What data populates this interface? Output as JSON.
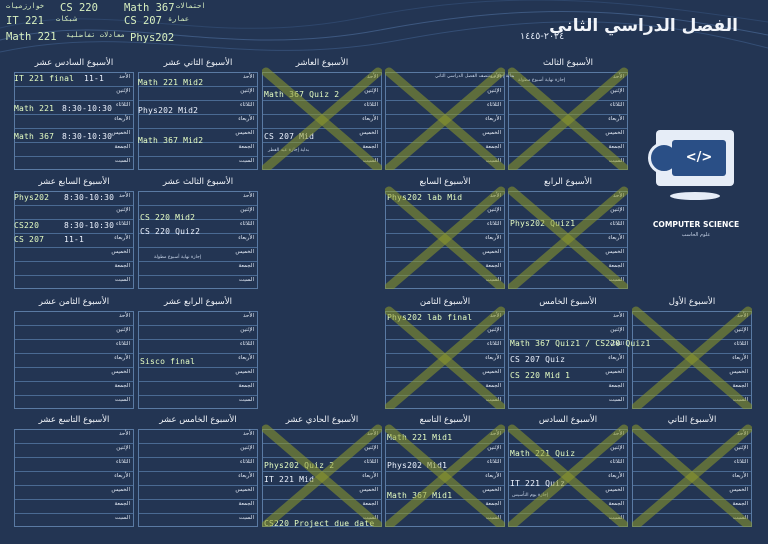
{
  "page_title": "الفصل الدراسي الثاني",
  "academic_year": "٢٠٢٤-١٤٤٥",
  "legend": [
    {
      "text": "CS 220",
      "sub": "خوارزميات"
    },
    {
      "text": "IT 221",
      "sub": "شبكات"
    },
    {
      "text": "Math 221",
      "sub": "معادلات تفاضلية"
    },
    {
      "text": "Math 367",
      "sub": "احتمالات"
    },
    {
      "text": "CS 207",
      "sub": "عمارة"
    },
    {
      "text": "Phys202",
      "sub": ""
    }
  ],
  "logo": {
    "text": "COMPUTER SCIENCE",
    "sub": "علوم الحاسب",
    "code_glyph": "</>",
    "icon": "code-icon"
  },
  "day_labels": [
    "الأحد",
    "الإثنين",
    "الثلاثاء",
    "الأربعاء",
    "الخميس",
    "الجمعة",
    "السبت"
  ],
  "weeks": [
    {
      "id": "w1",
      "title": "الأسبوع الأول",
      "crossed": true,
      "entries": []
    },
    {
      "id": "w2",
      "title": "الأسبوع الثاني",
      "crossed": true,
      "entries": []
    },
    {
      "id": "w3",
      "title": "الأسبوع الثالث",
      "crossed": true,
      "entries": [
        {
          "text": "إجازة نهاية أسبوع مطولة",
          "kind": "note"
        }
      ]
    },
    {
      "id": "w4",
      "title": "الأسبوع الرابع",
      "crossed": true,
      "entries": [
        {
          "text": "Phys202 Quiz1",
          "kind": "hand"
        }
      ]
    },
    {
      "id": "w5",
      "title": "الأسبوع الخامس",
      "crossed": false,
      "entries": [
        {
          "text": "Math 367 Quiz1 / CS220 Quiz1",
          "kind": "hand"
        },
        {
          "text": "CS 207 Quiz",
          "kind": "hand"
        },
        {
          "text": "CS 220 Mid 1",
          "kind": "hand"
        }
      ]
    },
    {
      "id": "w6",
      "title": "الأسبوع السادس",
      "crossed": true,
      "entries": [
        {
          "text": "Math 221 Quiz",
          "kind": "hand"
        },
        {
          "text": "IT 221 Quiz",
          "kind": "hand"
        },
        {
          "text": "إجازة يوم التأسيس",
          "kind": "note"
        }
      ]
    },
    {
      "id": "w7",
      "title": "الأسبوع السابع",
      "crossed": true,
      "entries": [
        {
          "text": "Phys202 lab Mid",
          "kind": "hand"
        }
      ]
    },
    {
      "id": "w8",
      "title": "الأسبوع الثامن",
      "crossed": true,
      "entries": [
        {
          "text": "Phys202 lab final",
          "kind": "hand"
        }
      ]
    },
    {
      "id": "w9",
      "title": "الأسبوع التاسع",
      "crossed": true,
      "entries": [
        {
          "text": "Math 221 Mid1",
          "kind": "hand"
        },
        {
          "text": "Phys202 Mid1",
          "kind": "hand"
        },
        {
          "text": "Math 367 Mid1",
          "kind": "hand"
        }
      ]
    },
    {
      "id": "w10",
      "title": "الأسبوع العاشر",
      "crossed": true,
      "entries": [
        {
          "text": "Math 367 Quiz 2",
          "kind": "hand"
        },
        {
          "text": "CS 207 Mid",
          "kind": "hand"
        },
        {
          "text": "بداية إجازة عيد الفطر",
          "kind": "note"
        }
      ]
    },
    {
      "id": "w11",
      "title": "الأسبوع الحادي عشر",
      "crossed": true,
      "entries": [
        {
          "text": "Phys202 Quiz 2",
          "kind": "hand"
        },
        {
          "text": "IT 221 Mid",
          "kind": "hand"
        },
        {
          "text": "CS220 Project due date",
          "kind": "hand"
        }
      ]
    },
    {
      "id": "w12",
      "title": "الأسبوع الثاني عشر",
      "crossed": false,
      "entries": [
        {
          "text": "Math 221 Mid2",
          "kind": "hand"
        },
        {
          "text": "Phys202 Mid2",
          "kind": "hand"
        },
        {
          "text": "Math 367 Mid2",
          "kind": "hand"
        }
      ]
    },
    {
      "id": "w13",
      "title": "الأسبوع الثالث عشر",
      "crossed": false,
      "entries": [
        {
          "text": "CS 220 Mid2",
          "kind": "hand"
        },
        {
          "text": "CS 220 Quiz2",
          "kind": "hand"
        },
        {
          "text": "إجازة نهاية أسبوع مطولة",
          "kind": "note"
        }
      ]
    },
    {
      "id": "w14",
      "title": "الأسبوع الرابع عشر",
      "crossed": false,
      "entries": [
        {
          "text": "Sisco final",
          "kind": "hand"
        }
      ]
    },
    {
      "id": "w15",
      "title": "الأسبوع الخامس عشر",
      "crossed": false,
      "entries": []
    },
    {
      "id": "w16",
      "title": "الأسبوع السادس عشر",
      "crossed": false,
      "entries": [
        {
          "text": "IT 221 final",
          "kind": "hand"
        },
        {
          "text": "11-1",
          "kind": "hand"
        },
        {
          "text": "Math 221",
          "kind": "hand"
        },
        {
          "text": "8:30-10:30",
          "kind": "hand"
        },
        {
          "text": "Math 367",
          "kind": "hand"
        },
        {
          "text": "8:30-10:30",
          "kind": "hand"
        }
      ]
    },
    {
      "id": "w17",
      "title": "الأسبوع السابع عشر",
      "crossed": false,
      "entries": [
        {
          "text": "Phys202",
          "kind": "hand"
        },
        {
          "text": "8:30-10:30",
          "kind": "hand"
        },
        {
          "text": "CS220",
          "kind": "hand"
        },
        {
          "text": "8:30-10:30",
          "kind": "hand"
        },
        {
          "text": "CS 207",
          "kind": "hand"
        },
        {
          "text": "11-1",
          "kind": "hand"
        }
      ]
    },
    {
      "id": "w18",
      "title": "الأسبوع الثامن عشر",
      "crossed": false,
      "entries": []
    },
    {
      "id": "w19",
      "title": "الأسبوع التاسع عشر",
      "crossed": false,
      "entries": []
    },
    {
      "id": "extra",
      "title": "",
      "crossed": true,
      "entries": [
        {
          "text": "بداية إجازة منتصف الفصل الدراسي الثاني",
          "kind": "note"
        }
      ]
    }
  ],
  "colors": {
    "background": "#233553",
    "cross": "#8f9a2a",
    "grid": "#5a7aa3"
  }
}
